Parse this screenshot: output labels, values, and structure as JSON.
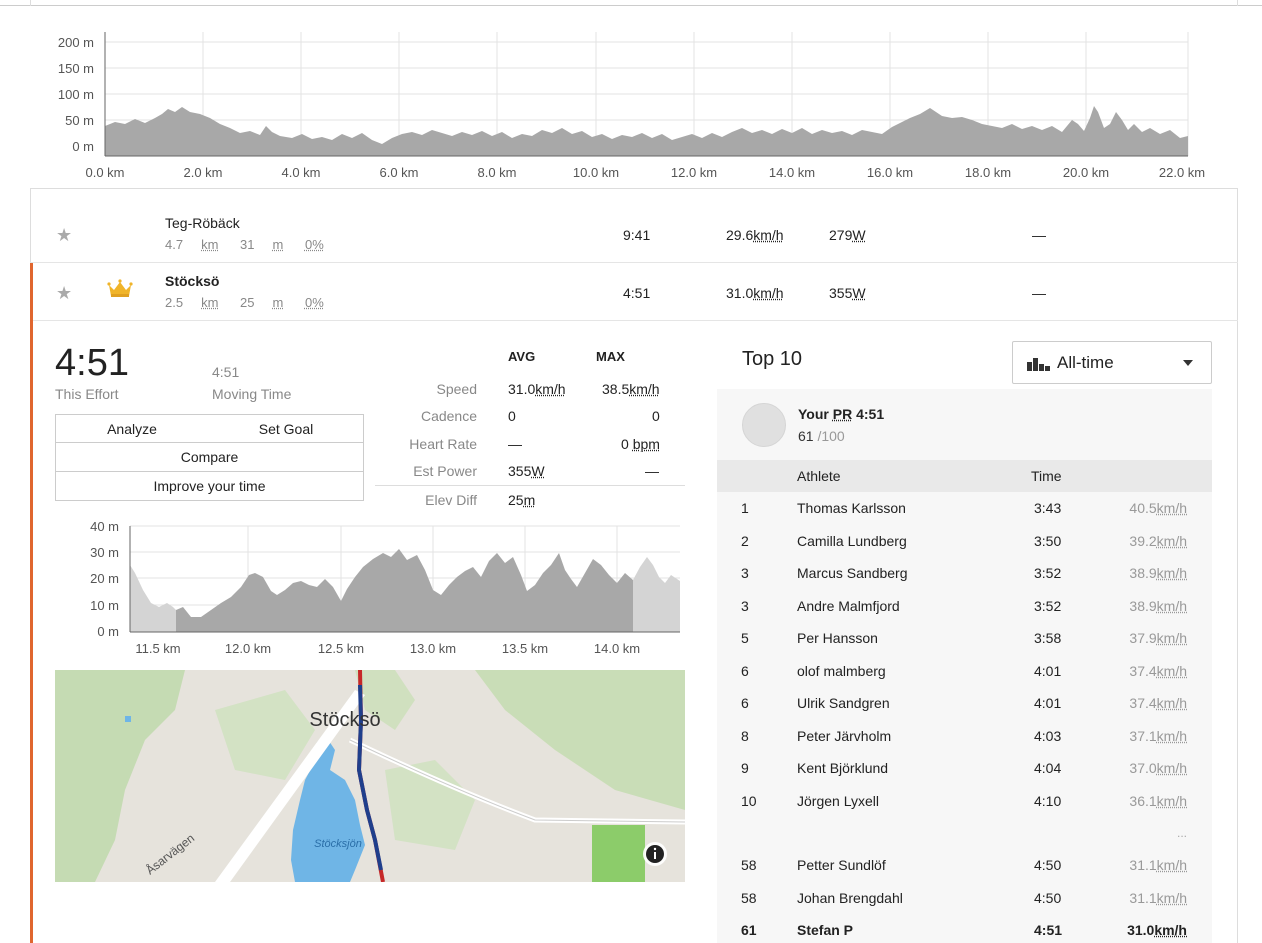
{
  "top_elevation": {
    "y_ticks": [
      "200 m",
      "150 m",
      "100 m",
      "50 m",
      "0 m"
    ],
    "x_ticks": [
      "0.0 km",
      "2.0 km",
      "4.0 km",
      "6.0 km",
      "8.0 km",
      "10.0 km",
      "12.0 km",
      "14.0 km",
      "16.0 km",
      "18.0 km",
      "20.0 km",
      "22.0 km"
    ]
  },
  "segments": [
    {
      "name": "Teg-Röbäck",
      "distance": "4.7",
      "dist_unit": "km",
      "elev": "31",
      "elev_unit": "m",
      "grade": "0%",
      "time": "9:41",
      "speed": "29.6",
      "speed_unit": "km/h",
      "power": "279",
      "power_unit": "W",
      "hr": "—"
    },
    {
      "name": "Stöcksö",
      "distance": "2.5",
      "dist_unit": "km",
      "elev": "25",
      "elev_unit": "m",
      "grade": "0%",
      "time": "4:51",
      "speed": "31.0",
      "speed_unit": "km/h",
      "power": "355",
      "power_unit": "W",
      "hr": "—"
    }
  ],
  "effort": {
    "time": "4:51",
    "time_label": "This Effort",
    "moving_time": "4:51",
    "moving_label": "Moving Time",
    "buttons": {
      "analyze": "Analyze",
      "set_goal": "Set Goal",
      "compare": "Compare",
      "improve": "Improve your time"
    },
    "stats_headers": {
      "avg": "AVG",
      "max": "MAX"
    },
    "stats": [
      {
        "label": "Speed",
        "avg": "31.0",
        "avg_unit": "km/h",
        "max": "38.5",
        "max_unit": "km/h"
      },
      {
        "label": "Cadence",
        "avg": "0",
        "avg_unit": "",
        "max": "0",
        "max_unit": ""
      },
      {
        "label": "Heart Rate",
        "avg": "—",
        "avg_unit": "",
        "max": "0",
        "max_unit": "bpm"
      },
      {
        "label": "Est Power",
        "avg": "355",
        "avg_unit": "W",
        "max": "—",
        "max_unit": ""
      },
      {
        "label": "Elev Diff",
        "avg": "25",
        "avg_unit": "m",
        "max": "",
        "max_unit": ""
      }
    ]
  },
  "segment_elevation": {
    "y_ticks": [
      "40 m",
      "30 m",
      "20 m",
      "10 m",
      "0 m"
    ],
    "x_ticks": [
      "11.5 km",
      "12.0 km",
      "12.5 km",
      "13.0 km",
      "13.5 km",
      "14.0 km"
    ]
  },
  "map": {
    "place": "Stöcksö",
    "lake": "Stöcksjön",
    "road": "Åsarvägen",
    "info_icon": "info-icon"
  },
  "leaderboard": {
    "title": "Top 10",
    "filter": "All-time",
    "pr_prefix": "Your",
    "pr_label": "PR",
    "pr_time": "4:51",
    "pr_rank": "61",
    "pr_total": "/100",
    "col_athlete": "Athlete",
    "col_time": "Time",
    "ellipsis": "...",
    "rows": [
      {
        "rank": "1",
        "name": "Thomas Karlsson",
        "time": "3:43",
        "speed": "40.5",
        "unit": "km/h"
      },
      {
        "rank": "2",
        "name": "Camilla Lundberg",
        "time": "3:50",
        "speed": "39.2",
        "unit": "km/h"
      },
      {
        "rank": "3",
        "name": "Marcus Sandberg",
        "time": "3:52",
        "speed": "38.9",
        "unit": "km/h"
      },
      {
        "rank": "3",
        "name": "Andre Malmfjord",
        "time": "3:52",
        "speed": "38.9",
        "unit": "km/h"
      },
      {
        "rank": "5",
        "name": "Per Hansson",
        "time": "3:58",
        "speed": "37.9",
        "unit": "km/h"
      },
      {
        "rank": "6",
        "name": "olof malmberg",
        "time": "4:01",
        "speed": "37.4",
        "unit": "km/h"
      },
      {
        "rank": "6",
        "name": "Ulrik Sandgren",
        "time": "4:01",
        "speed": "37.4",
        "unit": "km/h"
      },
      {
        "rank": "8",
        "name": "Peter Järvholm",
        "time": "4:03",
        "speed": "37.1",
        "unit": "km/h"
      },
      {
        "rank": "9",
        "name": "Kent Björklund",
        "time": "4:04",
        "speed": "37.0",
        "unit": "km/h"
      },
      {
        "rank": "10",
        "name": "Jörgen Lyxell",
        "time": "4:10",
        "speed": "36.1",
        "unit": "km/h"
      }
    ],
    "near_rows": [
      {
        "rank": "58",
        "name": "Petter Sundlöf",
        "time": "4:50",
        "speed": "31.1",
        "unit": "km/h"
      },
      {
        "rank": "58",
        "name": "Johan Brengdahl",
        "time": "4:50",
        "speed": "31.1",
        "unit": "km/h"
      },
      {
        "rank": "61",
        "name": "Stefan P",
        "time": "4:51",
        "speed": "31.0",
        "unit": "km/h"
      }
    ]
  }
}
